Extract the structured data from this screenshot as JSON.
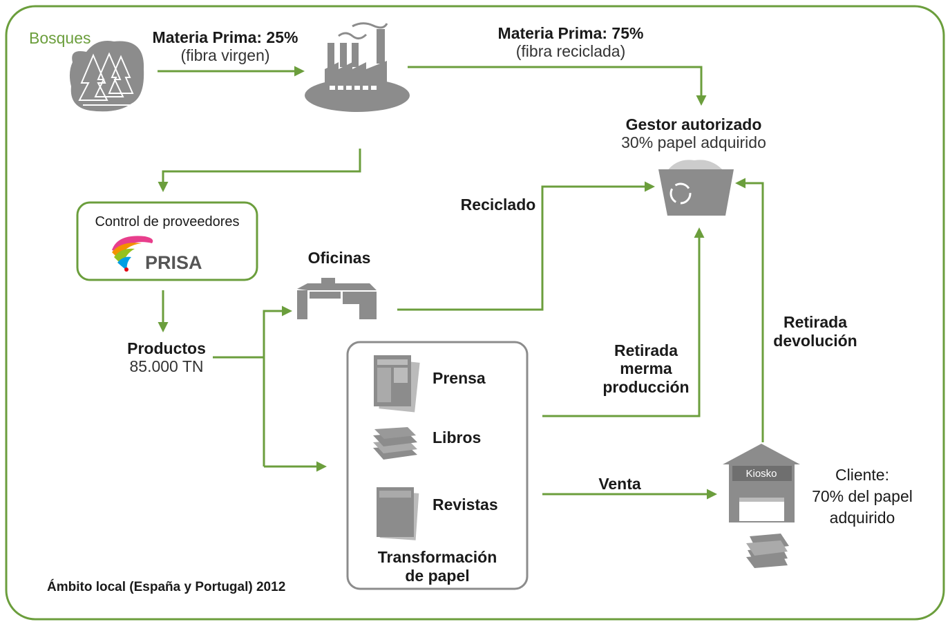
{
  "forest": {
    "label": "Bosques"
  },
  "raw_material_virgin": {
    "title": "Materia Prima: 25%",
    "subtitle": "(fibra virgen)"
  },
  "raw_material_recycled": {
    "title": "Materia Prima: 75%",
    "subtitle": "(fibra reciclada)"
  },
  "authorized_manager": {
    "title": "Gestor autorizado",
    "subtitle": "30% papel adquirido"
  },
  "supplier_control": {
    "title": "Control de proveedores",
    "logo": "PRISA"
  },
  "products": {
    "title": "Productos",
    "subtitle": "85.000 TN"
  },
  "offices": {
    "label": "Oficinas"
  },
  "recycled": {
    "label": "Reciclado"
  },
  "transformation": {
    "items": [
      "Prensa",
      "Libros",
      "Revistas"
    ],
    "title": [
      "Transformación",
      "de papel"
    ]
  },
  "production_waste": {
    "label": [
      "Retirada",
      "merma",
      "producción"
    ]
  },
  "returns": {
    "label": [
      "Retirada",
      "devolución"
    ]
  },
  "sale": {
    "label": "Venta"
  },
  "kiosk": {
    "label": "Kiosko"
  },
  "customer": {
    "label": [
      "Cliente:",
      "70% del papel",
      "adquirido"
    ]
  },
  "footer": {
    "note": "Ámbito local (España y Portugal) 2012"
  }
}
